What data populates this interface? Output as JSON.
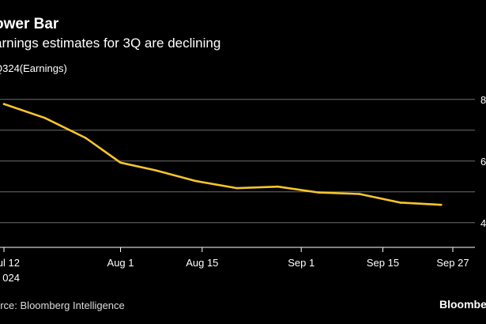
{
  "header": {
    "title": "ower Bar",
    "subtitle": "arnings estimates for 3Q are declining",
    "series_label": "Q324(Earnings)"
  },
  "footer": {
    "source": "urce: Bloomberg Intelligence",
    "brand": "Bloomberg"
  },
  "colors": {
    "background": "#000000",
    "line": "#f7c52c",
    "gridline": "#6e6e6e",
    "text": "#ffffff"
  },
  "chart_data": {
    "type": "line",
    "title": "ower Bar",
    "subtitle": "arnings estimates for 3Q are declining",
    "xlabel": "",
    "ylabel": "Q324(Earnings)",
    "grid": true,
    "x_ticks": [
      {
        "label": "ul 12",
        "sublabel": "024",
        "day": 0
      },
      {
        "label": "Aug 1",
        "day": 20
      },
      {
        "label": "Aug 15",
        "day": 34
      },
      {
        "label": "Sep 1",
        "day": 51
      },
      {
        "label": "Sep 15",
        "day": 65
      },
      {
        "label": "Sep 27",
        "day": 77
      }
    ],
    "y_ticks": [
      "8",
      "",
      "6",
      "",
      "4"
    ],
    "y_tick_values": [
      8,
      7,
      6,
      5,
      4
    ],
    "ylim": [
      3.2,
      8.2
    ],
    "series": [
      {
        "name": "3Q24 Earnings",
        "x": [
          0,
          7,
          14,
          20,
          26,
          33,
          40,
          47,
          54,
          61,
          68,
          75
        ],
        "y": [
          7.85,
          7.4,
          6.75,
          5.95,
          5.7,
          5.35,
          5.12,
          5.17,
          4.98,
          4.93,
          4.65,
          4.58
        ]
      }
    ]
  }
}
